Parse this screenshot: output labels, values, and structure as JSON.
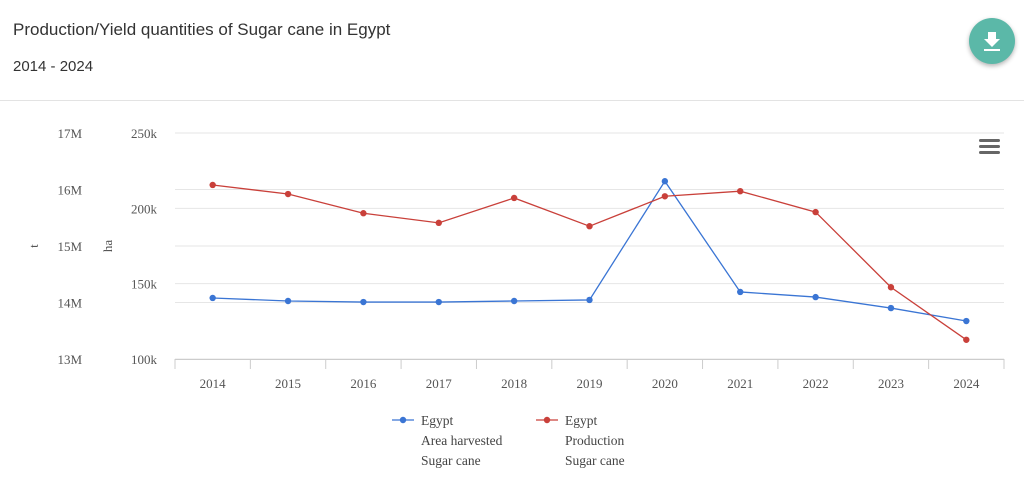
{
  "header": {
    "title": "Production/Yield quantities of Sugar cane in Egypt",
    "subtitle": "2014 - 2024",
    "download_icon": "download-icon",
    "menu_icon": "hamburger-menu-icon"
  },
  "chart_data": {
    "type": "line",
    "title": "Production/Yield quantities of Sugar cane in Egypt",
    "subtitle": "2014 - 2024",
    "categories": [
      "2014",
      "2015",
      "2016",
      "2017",
      "2018",
      "2019",
      "2020",
      "2021",
      "2022",
      "2023",
      "2024"
    ],
    "axes": [
      {
        "id": "t",
        "label": "t",
        "range": [
          13000000,
          17000000
        ],
        "ticks": [
          "13M",
          "14M",
          "15M",
          "16M",
          "17M"
        ],
        "tick_values": [
          13000000,
          14000000,
          15000000,
          16000000,
          17000000
        ]
      },
      {
        "id": "ha",
        "label": "ha",
        "range": [
          100000,
          250000
        ],
        "ticks": [
          "100k",
          "150k",
          "200k",
          "250k"
        ],
        "tick_values": [
          100000,
          150000,
          200000,
          250000
        ]
      }
    ],
    "series": [
      {
        "name": "Egypt",
        "lines": [
          "Egypt",
          "Area harvested",
          "Sugar cane"
        ],
        "axis": "ha",
        "color": "#3a75d4",
        "values": [
          140500,
          138500,
          137800,
          137800,
          138500,
          139200,
          218000,
          144500,
          141100,
          133800,
          125200
        ]
      },
      {
        "name": "Egypt",
        "lines": [
          "Egypt",
          "Production",
          "Sugar cane"
        ],
        "axis": "t",
        "color": "#c9403a",
        "values": [
          16080000,
          15920000,
          15580000,
          15410000,
          15850000,
          15350000,
          15880000,
          15970000,
          15600000,
          14270000,
          13340000
        ]
      }
    ],
    "grid": true,
    "legend": "bottom-center"
  }
}
